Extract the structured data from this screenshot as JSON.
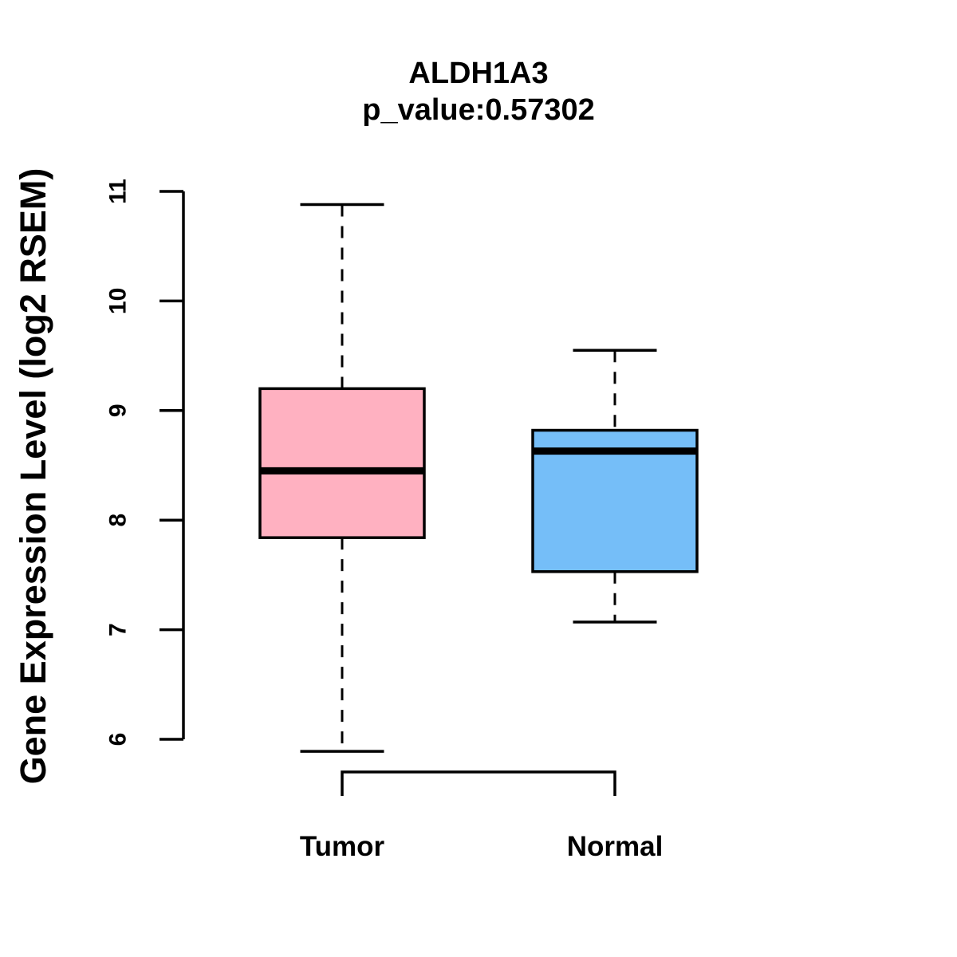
{
  "chart_data": {
    "type": "boxplot",
    "title": "ALDH1A3",
    "subtitle": "p_value:0.57302",
    "ylabel": "Gene Expression Level (log2 RSEM)",
    "ylim": [
      6,
      11
    ],
    "yticks": [
      6,
      7,
      8,
      9,
      10,
      11
    ],
    "grid": "off",
    "groups": [
      {
        "label": "Tumor",
        "color": "#FFB1C1",
        "whisker_low": 5.89,
        "q1": 7.84,
        "median": 8.45,
        "q3": 9.2,
        "whisker_high": 10.88
      },
      {
        "label": "Normal",
        "color": "#75BEF8",
        "whisker_low": 7.07,
        "q1": 7.53,
        "median": 8.63,
        "q3": 8.82,
        "whisker_high": 9.55
      }
    ],
    "comparison_bracket": {
      "between": [
        "Tumor",
        "Normal"
      ]
    },
    "axis_color": "#000000"
  }
}
